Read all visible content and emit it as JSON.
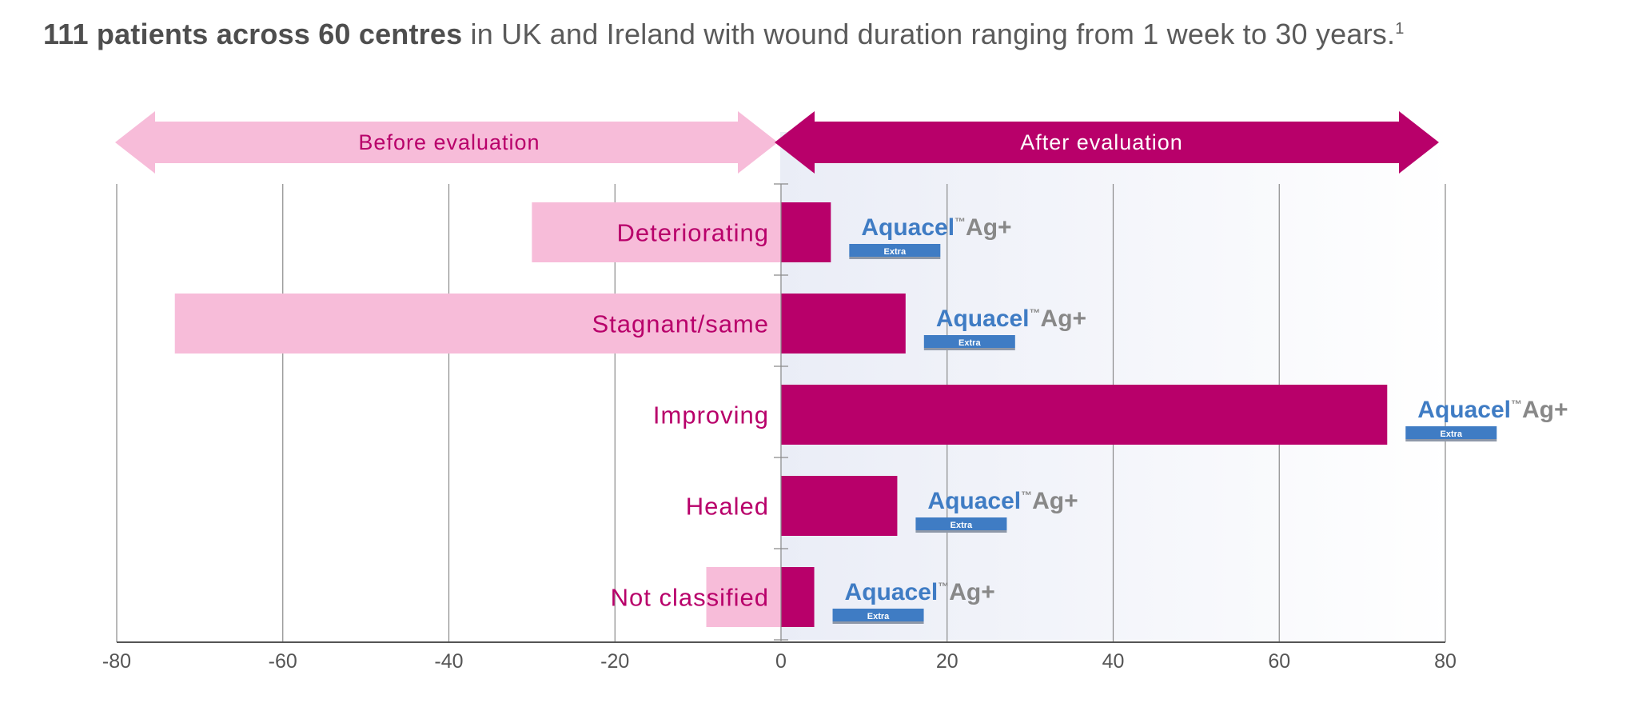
{
  "headline": {
    "bold": "111 patients across 60 centres",
    "rest": " in UK and Ireland with wound duration ranging from 1 week to 30 years.",
    "footnote": "1"
  },
  "phases": {
    "before_label": "Before evaluation",
    "after_label": "After evaluation",
    "before_color": "#f7bcd9",
    "after_color": "#b8006a"
  },
  "product": {
    "name": "Aquacel",
    "trademark": "™",
    "suffix": "Ag+",
    "badge": "Extra",
    "name_color": "#3f7cc4",
    "suffix_color": "#888888"
  },
  "chart_data": {
    "type": "bar",
    "orientation": "horizontal-diverging",
    "categories": [
      "Deteriorating",
      "Stagnant/same",
      "Improving",
      "Healed",
      "Not classified"
    ],
    "series": [
      {
        "name": "Before evaluation",
        "values": [
          -30,
          -73,
          0,
          0,
          -9
        ],
        "color": "#f7bcd9"
      },
      {
        "name": "After evaluation",
        "values": [
          6,
          15,
          73,
          14,
          4
        ],
        "color": "#b8006a"
      }
    ],
    "xticks": [
      -80,
      -60,
      -40,
      -20,
      0,
      20,
      40,
      60,
      80
    ],
    "xlim": [
      -80,
      80
    ],
    "grid": true,
    "label_color": "#b8006a",
    "axis_color": "#555555"
  }
}
